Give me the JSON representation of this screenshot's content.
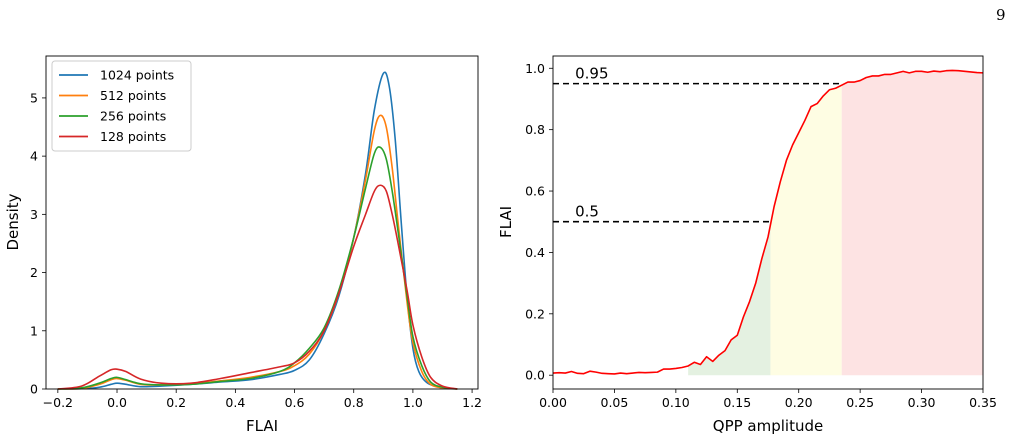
{
  "page": {
    "number": "9"
  },
  "chart_data": [
    {
      "type": "line",
      "subtype": "density",
      "xlabel": "FLAI",
      "ylabel": "Density",
      "xlim": [
        -0.24,
        1.22
      ],
      "ylim": [
        0,
        5.72
      ],
      "xticks": [
        -0.2,
        0.0,
        0.2,
        0.4,
        0.6,
        0.8,
        1.0,
        1.2
      ],
      "xtick_labels": [
        "−0.2",
        "0.0",
        "0.2",
        "0.4",
        "0.6",
        "0.8",
        "1.0",
        "1.2"
      ],
      "yticks": [
        0,
        1,
        2,
        3,
        4,
        5
      ],
      "ytick_labels": [
        "0",
        "1",
        "2",
        "3",
        "4",
        "5"
      ],
      "grid": false,
      "legend": "top-left",
      "series": [
        {
          "name": "1024 points",
          "color": "#1f77b4",
          "points": [
            [
              -0.2,
              0
            ],
            [
              -0.12,
              0.005
            ],
            [
              -0.06,
              0.03
            ],
            [
              -0.02,
              0.08
            ],
            [
              0.0,
              0.1
            ],
            [
              0.03,
              0.08
            ],
            [
              0.08,
              0.04
            ],
            [
              0.15,
              0.05
            ],
            [
              0.25,
              0.08
            ],
            [
              0.35,
              0.12
            ],
            [
              0.45,
              0.16
            ],
            [
              0.55,
              0.25
            ],
            [
              0.6,
              0.32
            ],
            [
              0.65,
              0.5
            ],
            [
              0.7,
              0.95
            ],
            [
              0.75,
              1.6
            ],
            [
              0.8,
              2.6
            ],
            [
              0.84,
              3.7
            ],
            [
              0.87,
              4.8
            ],
            [
              0.9,
              5.42
            ],
            [
              0.92,
              5.2
            ],
            [
              0.94,
              4.3
            ],
            [
              0.96,
              2.9
            ],
            [
              0.98,
              1.6
            ],
            [
              1.0,
              0.7
            ],
            [
              1.02,
              0.3
            ],
            [
              1.05,
              0.1
            ],
            [
              1.1,
              0.02
            ],
            [
              1.15,
              0
            ]
          ]
        },
        {
          "name": "512 points",
          "color": "#ff7f0e",
          "points": [
            [
              -0.2,
              0
            ],
            [
              -0.12,
              0.01
            ],
            [
              -0.06,
              0.08
            ],
            [
              -0.02,
              0.16
            ],
            [
              0.0,
              0.18
            ],
            [
              0.03,
              0.15
            ],
            [
              0.08,
              0.08
            ],
            [
              0.15,
              0.07
            ],
            [
              0.25,
              0.09
            ],
            [
              0.35,
              0.14
            ],
            [
              0.45,
              0.2
            ],
            [
              0.55,
              0.3
            ],
            [
              0.6,
              0.4
            ],
            [
              0.65,
              0.6
            ],
            [
              0.7,
              1.0
            ],
            [
              0.75,
              1.65
            ],
            [
              0.8,
              2.6
            ],
            [
              0.84,
              3.6
            ],
            [
              0.87,
              4.45
            ],
            [
              0.89,
              4.7
            ],
            [
              0.91,
              4.5
            ],
            [
              0.93,
              3.8
            ],
            [
              0.95,
              2.85
            ],
            [
              0.98,
              1.5
            ],
            [
              1.0,
              0.8
            ],
            [
              1.03,
              0.3
            ],
            [
              1.06,
              0.08
            ],
            [
              1.1,
              0.02
            ],
            [
              1.15,
              0
            ]
          ]
        },
        {
          "name": "256 points",
          "color": "#2ca02c",
          "points": [
            [
              -0.2,
              0
            ],
            [
              -0.12,
              0.02
            ],
            [
              -0.06,
              0.1
            ],
            [
              -0.02,
              0.18
            ],
            [
              0.0,
              0.2
            ],
            [
              0.03,
              0.16
            ],
            [
              0.08,
              0.09
            ],
            [
              0.15,
              0.07
            ],
            [
              0.25,
              0.08
            ],
            [
              0.35,
              0.13
            ],
            [
              0.45,
              0.18
            ],
            [
              0.55,
              0.3
            ],
            [
              0.6,
              0.45
            ],
            [
              0.65,
              0.7
            ],
            [
              0.7,
              1.05
            ],
            [
              0.75,
              1.7
            ],
            [
              0.8,
              2.6
            ],
            [
              0.84,
              3.45
            ],
            [
              0.87,
              4.05
            ],
            [
              0.89,
              4.15
            ],
            [
              0.91,
              3.95
            ],
            [
              0.93,
              3.4
            ],
            [
              0.95,
              2.7
            ],
            [
              0.98,
              1.6
            ],
            [
              1.0,
              0.9
            ],
            [
              1.03,
              0.4
            ],
            [
              1.06,
              0.12
            ],
            [
              1.1,
              0.03
            ],
            [
              1.15,
              0
            ]
          ]
        },
        {
          "name": "128 points",
          "color": "#d62728",
          "points": [
            [
              -0.2,
              0
            ],
            [
              -0.12,
              0.05
            ],
            [
              -0.06,
              0.22
            ],
            [
              -0.02,
              0.33
            ],
            [
              0.0,
              0.34
            ],
            [
              0.03,
              0.3
            ],
            [
              0.08,
              0.17
            ],
            [
              0.15,
              0.1
            ],
            [
              0.25,
              0.1
            ],
            [
              0.35,
              0.18
            ],
            [
              0.45,
              0.28
            ],
            [
              0.55,
              0.38
            ],
            [
              0.6,
              0.45
            ],
            [
              0.65,
              0.65
            ],
            [
              0.7,
              1.0
            ],
            [
              0.75,
              1.65
            ],
            [
              0.8,
              2.45
            ],
            [
              0.84,
              3.0
            ],
            [
              0.87,
              3.4
            ],
            [
              0.89,
              3.5
            ],
            [
              0.91,
              3.4
            ],
            [
              0.93,
              3.0
            ],
            [
              0.95,
              2.5
            ],
            [
              0.98,
              1.7
            ],
            [
              1.0,
              1.1
            ],
            [
              1.03,
              0.55
            ],
            [
              1.06,
              0.2
            ],
            [
              1.1,
              0.05
            ],
            [
              1.15,
              0
            ]
          ]
        }
      ]
    },
    {
      "type": "line",
      "xlabel": "QPP amplitude",
      "ylabel": "FLAI",
      "xlim": [
        0.0,
        0.35
      ],
      "ylim": [
        -0.045,
        1.04
      ],
      "xticks": [
        0.0,
        0.05,
        0.1,
        0.15,
        0.2,
        0.25,
        0.3,
        0.35
      ],
      "xtick_labels": [
        "0.00",
        "0.05",
        "0.10",
        "0.15",
        "0.20",
        "0.25",
        "0.30",
        "0.35"
      ],
      "yticks": [
        0.0,
        0.2,
        0.4,
        0.6,
        0.8,
        1.0
      ],
      "ytick_labels": [
        "0.0",
        "0.2",
        "0.4",
        "0.6",
        "0.8",
        "1.0"
      ],
      "grid": false,
      "series": [
        {
          "color": "#ff0000",
          "points": [
            [
              0,
              0.007
            ],
            [
              0.005,
              0.008
            ],
            [
              0.01,
              0.007
            ],
            [
              0.015,
              0.012
            ],
            [
              0.02,
              0.006
            ],
            [
              0.025,
              0.005
            ],
            [
              0.03,
              0.013
            ],
            [
              0.035,
              0.01
            ],
            [
              0.04,
              0.006
            ],
            [
              0.045,
              0.005
            ],
            [
              0.05,
              0.004
            ],
            [
              0.055,
              0.007
            ],
            [
              0.06,
              0.005
            ],
            [
              0.065,
              0.007
            ],
            [
              0.07,
              0.009
            ],
            [
              0.075,
              0.008
            ],
            [
              0.08,
              0.009
            ],
            [
              0.085,
              0.01
            ],
            [
              0.09,
              0.02
            ],
            [
              0.095,
              0.02
            ],
            [
              0.1,
              0.022
            ],
            [
              0.105,
              0.025
            ],
            [
              0.11,
              0.03
            ],
            [
              0.115,
              0.042
            ],
            [
              0.12,
              0.035
            ],
            [
              0.125,
              0.06
            ],
            [
              0.13,
              0.045
            ],
            [
              0.135,
              0.065
            ],
            [
              0.14,
              0.08
            ],
            [
              0.145,
              0.115
            ],
            [
              0.15,
              0.13
            ],
            [
              0.155,
              0.19
            ],
            [
              0.16,
              0.24
            ],
            [
              0.165,
              0.3
            ],
            [
              0.17,
              0.38
            ],
            [
              0.175,
              0.45
            ],
            [
              0.18,
              0.55
            ],
            [
              0.185,
              0.63
            ],
            [
              0.19,
              0.7
            ],
            [
              0.195,
              0.75
            ],
            [
              0.2,
              0.79
            ],
            [
              0.205,
              0.83
            ],
            [
              0.21,
              0.875
            ],
            [
              0.215,
              0.885
            ],
            [
              0.22,
              0.91
            ],
            [
              0.225,
              0.93
            ],
            [
              0.23,
              0.935
            ],
            [
              0.235,
              0.945
            ],
            [
              0.24,
              0.955
            ],
            [
              0.245,
              0.955
            ],
            [
              0.25,
              0.96
            ],
            [
              0.255,
              0.97
            ],
            [
              0.26,
              0.975
            ],
            [
              0.265,
              0.975
            ],
            [
              0.27,
              0.98
            ],
            [
              0.275,
              0.98
            ],
            [
              0.28,
              0.985
            ],
            [
              0.285,
              0.99
            ],
            [
              0.29,
              0.985
            ],
            [
              0.295,
              0.99
            ],
            [
              0.3,
              0.99
            ],
            [
              0.305,
              0.987
            ],
            [
              0.31,
              0.991
            ],
            [
              0.315,
              0.989
            ],
            [
              0.32,
              0.992
            ],
            [
              0.325,
              0.993
            ],
            [
              0.33,
              0.992
            ],
            [
              0.335,
              0.99
            ],
            [
              0.34,
              0.988
            ],
            [
              0.345,
              0.986
            ],
            [
              0.35,
              0.985
            ]
          ]
        }
      ],
      "thresholds": [
        {
          "label": "0.5",
          "y": 0.5,
          "x_end": 0.177
        },
        {
          "label": "0.95",
          "y": 0.95,
          "x_end": 0.235
        }
      ],
      "regions": [
        {
          "name": "green",
          "x": [
            0.11,
            0.177
          ],
          "color": "#e4f1e1"
        },
        {
          "name": "yellow",
          "x": [
            0.177,
            0.235
          ],
          "color": "#fefde3"
        },
        {
          "name": "red",
          "x": [
            0.235,
            0.35
          ],
          "color": "#fde3e3"
        }
      ]
    }
  ]
}
